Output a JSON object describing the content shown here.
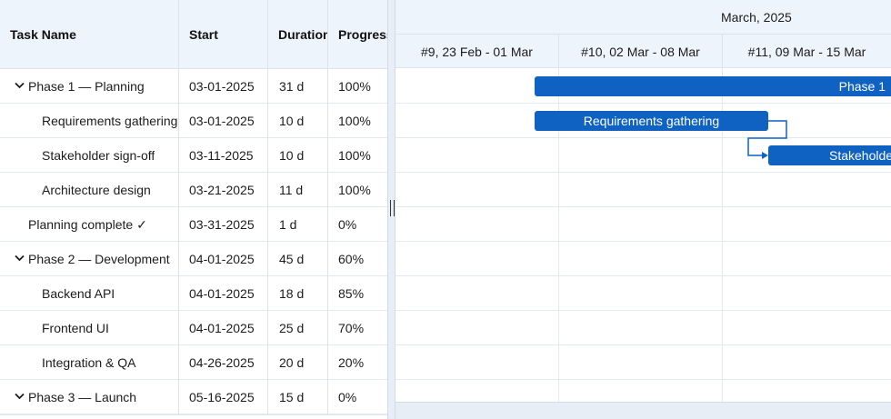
{
  "grid": {
    "columns": {
      "task_name": "Task Name",
      "start": "Start",
      "duration": "Duration",
      "progress": "Progress"
    },
    "rows": [
      {
        "name": "Phase 1 — Planning",
        "start": "03-01-2025",
        "duration": "31 d",
        "progress": "100%",
        "level": 0,
        "expandable": true
      },
      {
        "name": "Requirements gathering",
        "start": "03-01-2025",
        "duration": "10 d",
        "progress": "100%",
        "level": 1,
        "expandable": false
      },
      {
        "name": "Stakeholder sign-off",
        "start": "03-11-2025",
        "duration": "10 d",
        "progress": "100%",
        "level": 1,
        "expandable": false
      },
      {
        "name": "Architecture design",
        "start": "03-21-2025",
        "duration": "11 d",
        "progress": "100%",
        "level": 1,
        "expandable": false
      },
      {
        "name": "Planning complete ✓",
        "start": "03-31-2025",
        "duration": "1 d",
        "progress": "0%",
        "level": 0,
        "expandable": false
      },
      {
        "name": "Phase 2 — Development",
        "start": "04-01-2025",
        "duration": "45 d",
        "progress": "60%",
        "level": 0,
        "expandable": true
      },
      {
        "name": "Backend API",
        "start": "04-01-2025",
        "duration": "18 d",
        "progress": "85%",
        "level": 1,
        "expandable": false
      },
      {
        "name": "Frontend UI",
        "start": "04-01-2025",
        "duration": "25 d",
        "progress": "70%",
        "level": 1,
        "expandable": false
      },
      {
        "name": "Integration & QA",
        "start": "04-26-2025",
        "duration": "20 d",
        "progress": "20%",
        "level": 1,
        "expandable": false
      },
      {
        "name": "Phase 3 — Launch",
        "start": "05-16-2025",
        "duration": "15 d",
        "progress": "0%",
        "level": 0,
        "expandable": true
      }
    ]
  },
  "timeline": {
    "month": "March, 2025",
    "weeks": [
      "#9, 23 Feb - 01 Mar",
      "#10, 02 Mar - 08 Mar",
      "#11, 09 Mar - 15 Mar"
    ],
    "bars": [
      {
        "label": "Phase 1",
        "kind": "summary"
      },
      {
        "label": "Requirements gathering",
        "kind": "task"
      },
      {
        "label": "Stakeholder sign-off",
        "kind": "task"
      }
    ]
  },
  "colors": {
    "bar": "#0f62c2",
    "header_bg": "#eef4fb",
    "grid_line": "#e3e9f1"
  },
  "icons": {
    "expand": "chevron-down-icon",
    "splitter": "grip-icon"
  }
}
